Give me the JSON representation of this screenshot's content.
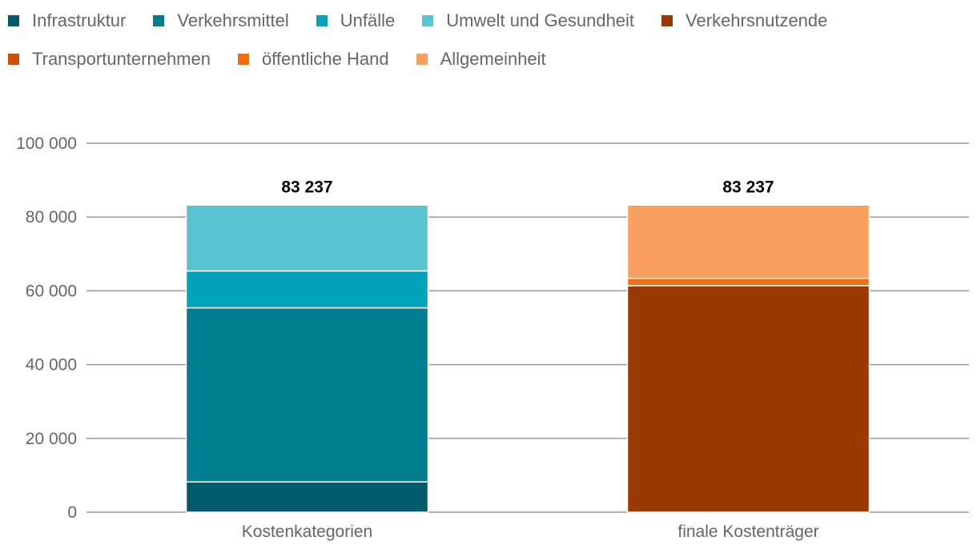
{
  "chart_data": {
    "type": "bar",
    "stacked": true,
    "categories": [
      "Kostenkategorien",
      "finale Kostenträger"
    ],
    "series": [
      {
        "name": "Infrastruktur",
        "values": [
          8200,
          0
        ],
        "color": "#005c6b"
      },
      {
        "name": "Verkehrsmittel",
        "values": [
          47200,
          0
        ],
        "color": "#007d8f"
      },
      {
        "name": "Unfälle",
        "values": [
          10000,
          0
        ],
        "color": "#00a3b9"
      },
      {
        "name": "Umwelt und Gesundheit",
        "values": [
          17837,
          0
        ],
        "color": "#59c3d0"
      },
      {
        "name": "Verkehrsnutzende",
        "values": [
          0,
          61400
        ],
        "color": "#993a00"
      },
      {
        "name": "Transportunternehmen",
        "values": [
          0,
          0
        ],
        "color": "#cc5200"
      },
      {
        "name": "öffentliche Hand",
        "values": [
          0,
          2000
        ],
        "color": "#f26f0f"
      },
      {
        "name": "Allgemeinheit",
        "values": [
          0,
          19837
        ],
        "color": "#f9a05e"
      }
    ],
    "totals": [
      "83 237",
      "83 237"
    ],
    "y_ticks": [
      "0",
      "20 000",
      "40 000",
      "60 000",
      "80 000",
      "100 000"
    ],
    "ylim": [
      0,
      100000
    ],
    "grid": true,
    "legend_position": "top-left"
  }
}
